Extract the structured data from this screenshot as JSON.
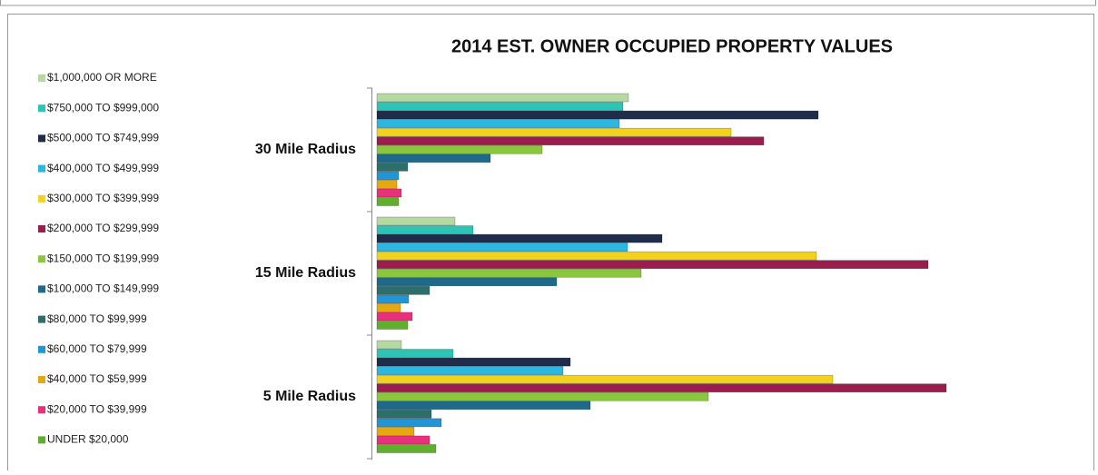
{
  "chart_data": {
    "type": "bar",
    "orientation": "horizontal",
    "title": "2014 EST. OWNER OCCUPIED PROPERTY VALUES",
    "categories": [
      "30 Mile Radius",
      "15 Mile Radius",
      "5 Mile Radius"
    ],
    "legend": "left",
    "series": [
      {
        "name": "$1,000,000 OR MORE",
        "color": "#b5d9a0",
        "values": [
          277,
          86,
          27
        ]
      },
      {
        "name": "$750,000 TO $999,000",
        "color": "#2cc4b5",
        "values": [
          271,
          106,
          84
        ]
      },
      {
        "name": "$500,000 TO $749,999",
        "color": "#1f2d4a",
        "values": [
          486,
          314,
          213
        ]
      },
      {
        "name": "$400,000 TO $499,999",
        "color": "#2bb7e0",
        "values": [
          267,
          276,
          205
        ]
      },
      {
        "name": "$300,000 TO $399,999",
        "color": "#f2d21a",
        "values": [
          390,
          484,
          502
        ]
      },
      {
        "name": "$200,000 TO $299,999",
        "color": "#9b1d4d",
        "values": [
          426,
          607,
          627
        ]
      },
      {
        "name": "$150,000 TO $199,999",
        "color": "#8bc63f",
        "values": [
          182,
          291,
          365
        ]
      },
      {
        "name": "$100,000 TO $149,999",
        "color": "#1f6a8a",
        "values": [
          125,
          198,
          235
        ]
      },
      {
        "name": "$80,000 TO $99,999",
        "color": "#2d6e6a",
        "values": [
          34,
          58,
          60
        ]
      },
      {
        "name": "$60,000 TO $79,999",
        "color": "#2196d6",
        "values": [
          24,
          35,
          71
        ]
      },
      {
        "name": "$40,000 TO $59,999",
        "color": "#e5a810",
        "values": [
          22,
          26,
          41
        ]
      },
      {
        "name": "$20,000 TO $39,999",
        "color": "#e8317a",
        "values": [
          27,
          39,
          58
        ]
      },
      {
        "name": "UNDER $20,000",
        "color": "#5fae2e",
        "values": [
          24,
          34,
          65
        ]
      }
    ]
  }
}
